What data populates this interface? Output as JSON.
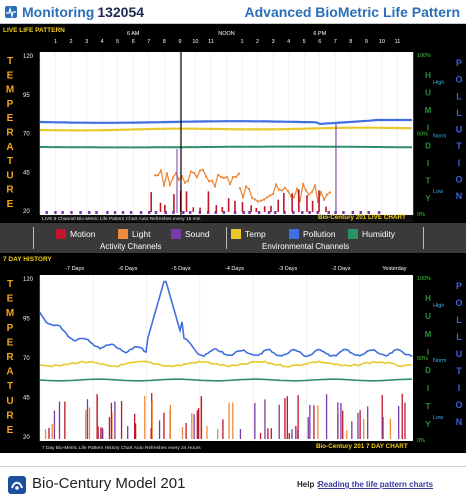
{
  "header": {
    "app_name": "Monitoring",
    "monitor_id": "132054",
    "right_title": "Advanced BioMetric Life Pattern"
  },
  "live": {
    "panel_title": "LIVE LIFE PATTERN",
    "hour_numbers_1": [
      "1",
      "2",
      "3",
      "4",
      "5",
      "6",
      "7",
      "8",
      "9",
      "10",
      "11"
    ],
    "hour_numbers_2": [
      "1",
      "2",
      "3",
      "4",
      "5",
      "6",
      "7",
      "8",
      "9",
      "10",
      "11"
    ],
    "hour_markers": {
      "six_am": "6 AM",
      "noon": "NOON",
      "six_pm": "6 PM"
    },
    "y_left": [
      "120",
      "95",
      "70",
      "45",
      "20"
    ],
    "y_right_pct": [
      "100%",
      "50%",
      "0%"
    ],
    "y_right_level": [
      "High",
      "Norm",
      "Low"
    ],
    "left_axis_word": "TEMPERATURE",
    "humidity_word": "HUMIDITY",
    "pollution_word": "POLLUTION",
    "note": "LIVE 6 Channel Bio-Metric Life Pattern Chart Auto Refreshes every 15 min",
    "badge": "Bio-Century 201 LIVE CHART"
  },
  "history": {
    "panel_title": "7 DAY HISTORY",
    "day_labels": [
      "-7 Days",
      "-6 Days",
      "-5 Days",
      "-4 Days",
      "-3 Days",
      "-2 Days",
      "Yesterday"
    ],
    "y_left": [
      "120",
      "95",
      "70",
      "45",
      "20"
    ],
    "y_right_pct": [
      "100%",
      "50%",
      "0%"
    ],
    "y_right_level": [
      "High",
      "Norm",
      "Low"
    ],
    "note": "7 Day Bio-Metric Life Pattern History Chart Auto Refreshes every 24 Hours",
    "badge": "Bio-Century 201 7 DAY CHART"
  },
  "legend": {
    "items": [
      {
        "label": "Motion",
        "color": "#c0152a"
      },
      {
        "label": "Light",
        "color": "#ee8a3c"
      },
      {
        "label": "Sound",
        "color": "#7a3aa8"
      },
      {
        "label": "Temp",
        "color": "#e8c82a"
      },
      {
        "label": "Pollution",
        "color": "#3f6fe0"
      },
      {
        "label": "Humidity",
        "color": "#2f8f64"
      }
    ],
    "group_activity": "Activity Channels",
    "group_environment": "Environmental  Channels"
  },
  "colors": {
    "axis_label": "#f2a51c",
    "humidity": "#2b8f3b",
    "pollution": "#3a63e0",
    "high": "#3ab0ea",
    "norm": "#3ab0ea",
    "low": "#3ab0ea",
    "badge_text": "#f5d116",
    "pct": "#3ad13a"
  },
  "footer": {
    "model": "Bio-Century Model 201",
    "help_label": "Help :",
    "help_link": "Reading the life pattern charts"
  }
}
